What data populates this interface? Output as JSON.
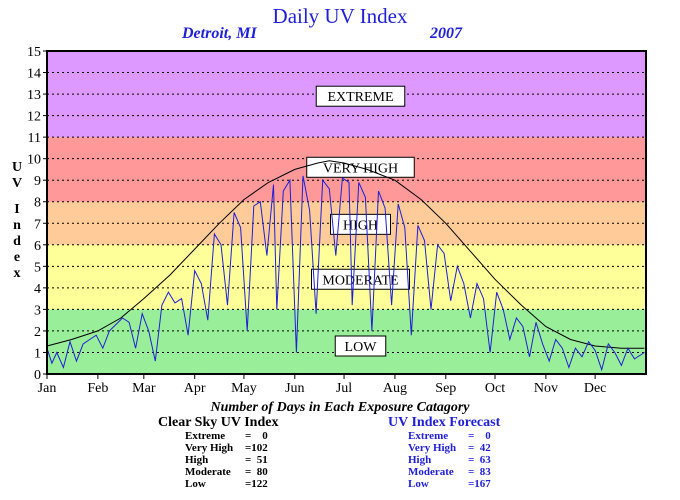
{
  "page": {
    "title": "Daily UV Index",
    "location": "Detroit, MI",
    "year": "2007",
    "ylabel_letters": [
      "U",
      "V",
      "I",
      "n",
      "d",
      "e",
      "x"
    ],
    "caption": "Number of Days in Each Exposure Catagory"
  },
  "chart_data": {
    "type": "line",
    "title": "Daily UV Index",
    "xlabel": "",
    "ylabel": "UV Index",
    "ylim": [
      0,
      15
    ],
    "xlim": [
      0,
      365
    ],
    "yticks": [
      0,
      1,
      2,
      3,
      4,
      5,
      6,
      7,
      8,
      9,
      10,
      11,
      12,
      13,
      14,
      15
    ],
    "months": [
      "Jan",
      "Feb",
      "Mar",
      "Apr",
      "May",
      "Jun",
      "Jul",
      "Aug",
      "Sep",
      "Oct",
      "Nov",
      "Dec"
    ],
    "month_start_days": [
      0,
      31,
      59,
      90,
      120,
      151,
      181,
      212,
      243,
      273,
      304,
      334
    ],
    "grid": true,
    "bands": [
      {
        "label": "LOW",
        "from": 0,
        "to": 3,
        "color": "#99ee99",
        "label_y": 1.3
      },
      {
        "label": "MODERATE",
        "from": 3,
        "to": 6,
        "color": "#ffff99",
        "label_y": 4.4
      },
      {
        "label": "HIGH",
        "from": 6,
        "to": 8,
        "color": "#ffcc99",
        "label_y": 6.95
      },
      {
        "label": "VERY HIGH",
        "from": 8,
        "to": 11,
        "color": "#ff9999",
        "label_y": 9.6
      },
      {
        "label": "EXTREME",
        "from": 11,
        "to": 15,
        "color": "#dd99ff",
        "label_y": 12.9
      }
    ],
    "series": [
      {
        "name": "Clear Sky UV Index",
        "color": "#000000",
        "points": [
          [
            0,
            1.3
          ],
          [
            15,
            1.6
          ],
          [
            31,
            2.0
          ],
          [
            45,
            2.6
          ],
          [
            59,
            3.5
          ],
          [
            75,
            4.6
          ],
          [
            90,
            5.8
          ],
          [
            105,
            7.0
          ],
          [
            120,
            8.1
          ],
          [
            135,
            8.9
          ],
          [
            151,
            9.5
          ],
          [
            165,
            9.8
          ],
          [
            172,
            9.9
          ],
          [
            181,
            9.8
          ],
          [
            195,
            9.5
          ],
          [
            212,
            9.0
          ],
          [
            228,
            8.1
          ],
          [
            243,
            7.0
          ],
          [
            258,
            5.7
          ],
          [
            273,
            4.4
          ],
          [
            289,
            3.2
          ],
          [
            304,
            2.2
          ],
          [
            319,
            1.6
          ],
          [
            334,
            1.3
          ],
          [
            350,
            1.2
          ],
          [
            364,
            1.2
          ]
        ]
      },
      {
        "name": "UV Index Forecast",
        "color": "#1f1fd6",
        "points": [
          [
            0,
            1.2
          ],
          [
            3,
            0.5
          ],
          [
            6,
            1.0
          ],
          [
            10,
            0.3
          ],
          [
            14,
            1.5
          ],
          [
            18,
            0.6
          ],
          [
            22,
            1.4
          ],
          [
            26,
            1.6
          ],
          [
            30,
            1.8
          ],
          [
            34,
            1.2
          ],
          [
            38,
            2.0
          ],
          [
            42,
            2.3
          ],
          [
            46,
            2.6
          ],
          [
            50,
            2.4
          ],
          [
            54,
            1.2
          ],
          [
            58,
            2.8
          ],
          [
            62,
            2.0
          ],
          [
            66,
            0.6
          ],
          [
            70,
            3.2
          ],
          [
            74,
            3.8
          ],
          [
            78,
            3.3
          ],
          [
            82,
            3.5
          ],
          [
            86,
            1.8
          ],
          [
            90,
            4.8
          ],
          [
            94,
            4.2
          ],
          [
            98,
            2.5
          ],
          [
            102,
            6.5
          ],
          [
            106,
            6.0
          ],
          [
            110,
            3.2
          ],
          [
            114,
            7.5
          ],
          [
            118,
            6.8
          ],
          [
            122,
            2.0
          ],
          [
            126,
            7.8
          ],
          [
            130,
            8.0
          ],
          [
            134,
            5.5
          ],
          [
            138,
            8.8
          ],
          [
            140,
            3.0
          ],
          [
            144,
            8.5
          ],
          [
            148,
            9.0
          ],
          [
            152,
            1.0
          ],
          [
            156,
            9.2
          ],
          [
            160,
            7.6
          ],
          [
            164,
            2.8
          ],
          [
            168,
            9.0
          ],
          [
            172,
            8.6
          ],
          [
            176,
            5.5
          ],
          [
            180,
            9.1
          ],
          [
            184,
            8.9
          ],
          [
            186,
            3.2
          ],
          [
            190,
            8.9
          ],
          [
            194,
            8.2
          ],
          [
            198,
            2.0
          ],
          [
            202,
            8.5
          ],
          [
            206,
            7.7
          ],
          [
            210,
            3.2
          ],
          [
            214,
            7.9
          ],
          [
            218,
            6.8
          ],
          [
            222,
            1.8
          ],
          [
            226,
            6.9
          ],
          [
            230,
            6.2
          ],
          [
            234,
            3.0
          ],
          [
            238,
            6.0
          ],
          [
            242,
            5.6
          ],
          [
            246,
            3.4
          ],
          [
            250,
            5.0
          ],
          [
            254,
            4.2
          ],
          [
            258,
            2.6
          ],
          [
            262,
            4.2
          ],
          [
            266,
            3.5
          ],
          [
            270,
            1.0
          ],
          [
            274,
            3.8
          ],
          [
            278,
            3.0
          ],
          [
            282,
            1.6
          ],
          [
            286,
            2.6
          ],
          [
            290,
            2.2
          ],
          [
            294,
            0.8
          ],
          [
            298,
            2.4
          ],
          [
            302,
            1.4
          ],
          [
            306,
            0.6
          ],
          [
            310,
            1.6
          ],
          [
            314,
            1.2
          ],
          [
            318,
            0.3
          ],
          [
            322,
            1.2
          ],
          [
            326,
            0.8
          ],
          [
            330,
            1.5
          ],
          [
            334,
            1.1
          ],
          [
            338,
            0.2
          ],
          [
            342,
            1.4
          ],
          [
            346,
            1.0
          ],
          [
            350,
            0.4
          ],
          [
            354,
            1.2
          ],
          [
            358,
            0.7
          ],
          [
            364,
            1.0
          ]
        ]
      }
    ]
  },
  "stats": {
    "clear": {
      "title": "Clear Sky UV Index",
      "rows": [
        {
          "label": "Extreme",
          "value": "=    0"
        },
        {
          "label": "Very High",
          "value": "=102"
        },
        {
          "label": "High",
          "value": "=  51"
        },
        {
          "label": "Moderate",
          "value": "=  80"
        },
        {
          "label": "Low",
          "value": "=122"
        }
      ]
    },
    "forecast": {
      "title": "UV Index Forecast",
      "rows": [
        {
          "label": "Extreme",
          "value": "=    0"
        },
        {
          "label": "Very High",
          "value": "=  42"
        },
        {
          "label": "High",
          "value": "=  63"
        },
        {
          "label": "Moderate",
          "value": "=  83"
        },
        {
          "label": "Low",
          "value": "=167"
        }
      ]
    }
  }
}
